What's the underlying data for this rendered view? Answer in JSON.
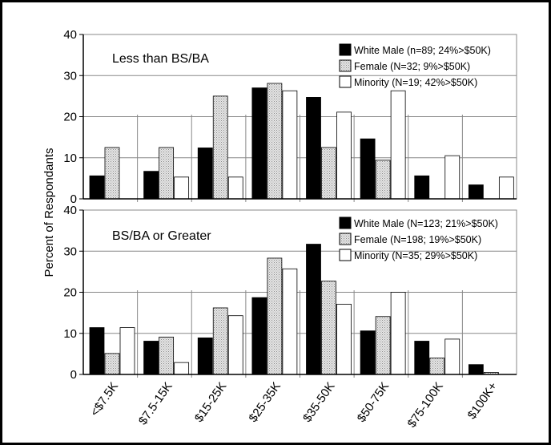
{
  "ylabel": "Percent of Respondants",
  "colors": {
    "white_male": "#000000",
    "female": "#d4d4d4",
    "minority": "#ffffff",
    "pattern_dot": "#8a8a8a"
  },
  "chart_data": [
    {
      "type": "bar",
      "title": "Less than BS/BA",
      "categories": [
        "<$7.5K",
        "$7.5-15K",
        "$15-25K",
        "$25-35K",
        "$35-50K",
        "$50-75K",
        "$75-100K",
        "$100K+"
      ],
      "ylim": [
        0,
        40
      ],
      "yticks": [
        0,
        10,
        20,
        30,
        40
      ],
      "grid": true,
      "legend": "top-right",
      "series": [
        {
          "name": "White Male (n=89; 24%>$50K)",
          "values": [
            5.6,
            6.7,
            12.4,
            27.0,
            24.7,
            14.6,
            5.6,
            3.4
          ]
        },
        {
          "name": "Female (N=32; 9%>$50K)",
          "values": [
            12.5,
            12.5,
            25.0,
            28.1,
            12.5,
            9.4,
            0,
            0
          ]
        },
        {
          "name": "Minority (N=19; 42%>$50K)",
          "values": [
            0,
            5.3,
            5.3,
            26.3,
            21.1,
            26.3,
            10.5,
            5.3
          ]
        }
      ]
    },
    {
      "type": "bar",
      "title": "BS/BA or Greater",
      "categories": [
        "<$7.5K",
        "$7.5-15K",
        "$15-25K",
        "$25-35K",
        "$35-50K",
        "$50-75K",
        "$75-100K",
        "$100K+"
      ],
      "ylim": [
        0,
        40
      ],
      "yticks": [
        0,
        10,
        20,
        30,
        40
      ],
      "grid": true,
      "legend": "top-right",
      "series": [
        {
          "name": "White Male (N=123; 21%>$50K)",
          "values": [
            11.4,
            8.1,
            8.9,
            18.7,
            31.7,
            10.6,
            8.1,
            2.4
          ]
        },
        {
          "name": "Female (N=198; 19%>$50K)",
          "values": [
            5.1,
            9.1,
            16.2,
            28.3,
            22.7,
            14.1,
            4.0,
            0.5
          ]
        },
        {
          "name": "Minority (N=35; 29%>$50K)",
          "values": [
            11.4,
            2.9,
            14.3,
            25.7,
            17.1,
            20.0,
            8.6,
            0
          ]
        }
      ]
    }
  ]
}
